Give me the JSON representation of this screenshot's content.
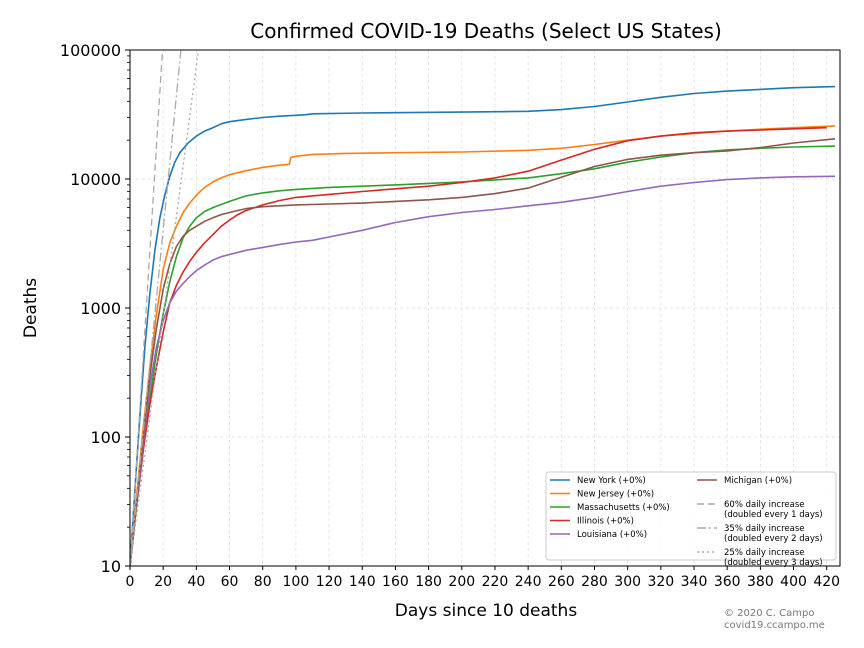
{
  "chart_data": {
    "type": "line",
    "title": "Confirmed COVID-19 Deaths (Select US States)",
    "xlabel": "Days since 10 deaths",
    "ylabel": "Deaths",
    "xlim": [
      0,
      428
    ],
    "ylim": [
      10,
      100000
    ],
    "yscale": "log",
    "grid": true,
    "legend_position": "bottom-right",
    "x_ticks": [
      0,
      20,
      40,
      60,
      80,
      100,
      120,
      140,
      160,
      180,
      200,
      220,
      240,
      260,
      280,
      300,
      320,
      340,
      360,
      380,
      400,
      420
    ],
    "y_ticks": [
      {
        "value": 10,
        "label": "10"
      },
      {
        "value": 100,
        "label": "100"
      },
      {
        "value": 1000,
        "label": "1000"
      },
      {
        "value": 10000,
        "label": "10000"
      },
      {
        "value": 100000,
        "label": "100000"
      }
    ],
    "series": [
      {
        "name": "New York (+0%)",
        "color": "#1f77b4",
        "style": "solid",
        "points": [
          [
            0,
            10
          ],
          [
            3,
            40
          ],
          [
            6,
            150
          ],
          [
            9,
            500
          ],
          [
            12,
            1300
          ],
          [
            15,
            2800
          ],
          [
            18,
            5000
          ],
          [
            21,
            7500
          ],
          [
            24,
            10500
          ],
          [
            27,
            13500
          ],
          [
            30,
            16000
          ],
          [
            35,
            19000
          ],
          [
            40,
            21500
          ],
          [
            45,
            23500
          ],
          [
            50,
            25000
          ],
          [
            55,
            26800
          ],
          [
            60,
            27800
          ],
          [
            70,
            29000
          ],
          [
            80,
            30000
          ],
          [
            90,
            30700
          ],
          [
            100,
            31200
          ],
          [
            106,
            31500
          ],
          [
            110,
            32000
          ],
          [
            140,
            32500
          ],
          [
            200,
            33000
          ],
          [
            240,
            33500
          ],
          [
            260,
            34500
          ],
          [
            280,
            36500
          ],
          [
            300,
            39500
          ],
          [
            320,
            43000
          ],
          [
            340,
            46000
          ],
          [
            360,
            48000
          ],
          [
            380,
            49500
          ],
          [
            400,
            51000
          ],
          [
            425,
            52000
          ]
        ]
      },
      {
        "name": "New Jersey (+0%)",
        "color": "#ff7f0e",
        "style": "solid",
        "points": [
          [
            0,
            10
          ],
          [
            4,
            35
          ],
          [
            8,
            120
          ],
          [
            12,
            350
          ],
          [
            16,
            900
          ],
          [
            20,
            2000
          ],
          [
            24,
            3200
          ],
          [
            28,
            4300
          ],
          [
            32,
            5500
          ],
          [
            36,
            6500
          ],
          [
            40,
            7500
          ],
          [
            45,
            8600
          ],
          [
            50,
            9500
          ],
          [
            55,
            10200
          ],
          [
            60,
            10800
          ],
          [
            70,
            11600
          ],
          [
            80,
            12300
          ],
          [
            90,
            12800
          ],
          [
            96,
            13000
          ],
          [
            97,
            14700
          ],
          [
            100,
            15000
          ],
          [
            110,
            15500
          ],
          [
            130,
            15800
          ],
          [
            160,
            16000
          ],
          [
            200,
            16200
          ],
          [
            240,
            16700
          ],
          [
            260,
            17300
          ],
          [
            280,
            18500
          ],
          [
            300,
            20000
          ],
          [
            320,
            21500
          ],
          [
            340,
            22500
          ],
          [
            360,
            23500
          ],
          [
            380,
            24300
          ],
          [
            400,
            25000
          ],
          [
            425,
            25800
          ]
        ]
      },
      {
        "name": "Massachusetts (+0%)",
        "color": "#2ca02c",
        "style": "solid",
        "points": [
          [
            0,
            10
          ],
          [
            4,
            30
          ],
          [
            8,
            80
          ],
          [
            12,
            200
          ],
          [
            16,
            450
          ],
          [
            20,
            900
          ],
          [
            24,
            1600
          ],
          [
            28,
            2500
          ],
          [
            32,
            3500
          ],
          [
            36,
            4300
          ],
          [
            40,
            5000
          ],
          [
            45,
            5600
          ],
          [
            50,
            6000
          ],
          [
            60,
            6700
          ],
          [
            70,
            7400
          ],
          [
            80,
            7800
          ],
          [
            90,
            8100
          ],
          [
            100,
            8300
          ],
          [
            120,
            8600
          ],
          [
            140,
            8800
          ],
          [
            160,
            9000
          ],
          [
            200,
            9500
          ],
          [
            240,
            10200
          ],
          [
            260,
            11000
          ],
          [
            280,
            12000
          ],
          [
            300,
            13500
          ],
          [
            320,
            14800
          ],
          [
            340,
            16000
          ],
          [
            360,
            16800
          ],
          [
            380,
            17300
          ],
          [
            400,
            17700
          ],
          [
            425,
            18000
          ]
        ]
      },
      {
        "name": "Illinois (+0%)",
        "color": "#d62728",
        "style": "solid",
        "points": [
          [
            0,
            10
          ],
          [
            4,
            30
          ],
          [
            8,
            80
          ],
          [
            12,
            180
          ],
          [
            16,
            350
          ],
          [
            20,
            650
          ],
          [
            24,
            1100
          ],
          [
            28,
            1500
          ],
          [
            32,
            1900
          ],
          [
            36,
            2300
          ],
          [
            40,
            2700
          ],
          [
            45,
            3200
          ],
          [
            50,
            3700
          ],
          [
            55,
            4300
          ],
          [
            60,
            4800
          ],
          [
            65,
            5300
          ],
          [
            70,
            5700
          ],
          [
            80,
            6300
          ],
          [
            90,
            6800
          ],
          [
            100,
            7200
          ],
          [
            120,
            7600
          ],
          [
            140,
            8000
          ],
          [
            160,
            8400
          ],
          [
            180,
            8800
          ],
          [
            200,
            9400
          ],
          [
            220,
            10200
          ],
          [
            240,
            11500
          ],
          [
            260,
            14000
          ],
          [
            280,
            17000
          ],
          [
            300,
            19800
          ],
          [
            320,
            21500
          ],
          [
            340,
            22800
          ],
          [
            360,
            23500
          ],
          [
            380,
            24000
          ],
          [
            400,
            24500
          ],
          [
            420,
            25000
          ]
        ]
      },
      {
        "name": "Louisiana (+0%)",
        "color": "#9467bd",
        "style": "solid",
        "points": [
          [
            0,
            10
          ],
          [
            4,
            30
          ],
          [
            8,
            90
          ],
          [
            12,
            250
          ],
          [
            16,
            500
          ],
          [
            20,
            800
          ],
          [
            24,
            1100
          ],
          [
            28,
            1350
          ],
          [
            32,
            1550
          ],
          [
            36,
            1750
          ],
          [
            40,
            1950
          ],
          [
            45,
            2150
          ],
          [
            50,
            2350
          ],
          [
            55,
            2500
          ],
          [
            60,
            2600
          ],
          [
            70,
            2800
          ],
          [
            80,
            2950
          ],
          [
            90,
            3100
          ],
          [
            100,
            3250
          ],
          [
            110,
            3350
          ],
          [
            120,
            3550
          ],
          [
            140,
            4000
          ],
          [
            160,
            4600
          ],
          [
            180,
            5100
          ],
          [
            200,
            5500
          ],
          [
            220,
            5800
          ],
          [
            240,
            6200
          ],
          [
            260,
            6600
          ],
          [
            280,
            7200
          ],
          [
            300,
            8000
          ],
          [
            320,
            8800
          ],
          [
            340,
            9400
          ],
          [
            360,
            9900
          ],
          [
            380,
            10200
          ],
          [
            400,
            10400
          ],
          [
            425,
            10500
          ]
        ]
      },
      {
        "name": "Michigan (+0%)",
        "color": "#8c564b",
        "style": "solid",
        "points": [
          [
            0,
            10
          ],
          [
            4,
            30
          ],
          [
            8,
            100
          ],
          [
            12,
            300
          ],
          [
            16,
            700
          ],
          [
            20,
            1400
          ],
          [
            24,
            2200
          ],
          [
            28,
            3000
          ],
          [
            32,
            3600
          ],
          [
            36,
            4000
          ],
          [
            40,
            4300
          ],
          [
            45,
            4700
          ],
          [
            50,
            5000
          ],
          [
            55,
            5300
          ],
          [
            60,
            5500
          ],
          [
            65,
            5700
          ],
          [
            70,
            5900
          ],
          [
            80,
            6100
          ],
          [
            100,
            6300
          ],
          [
            120,
            6400
          ],
          [
            140,
            6500
          ],
          [
            160,
            6700
          ],
          [
            180,
            6900
          ],
          [
            200,
            7200
          ],
          [
            220,
            7700
          ],
          [
            240,
            8500
          ],
          [
            260,
            10300
          ],
          [
            280,
            12500
          ],
          [
            300,
            14200
          ],
          [
            320,
            15300
          ],
          [
            340,
            16000
          ],
          [
            360,
            16500
          ],
          [
            380,
            17500
          ],
          [
            400,
            19000
          ],
          [
            425,
            20500
          ]
        ]
      },
      {
        "name": "60% daily increase\n(doubled every 1 days)",
        "color": "#aaaaaa",
        "style": "dashed",
        "points": [
          [
            0,
            10
          ],
          [
            19.6,
            100000
          ]
        ]
      },
      {
        "name": "35% daily increase\n(doubled every 2 days)",
        "color": "#aaaaaa",
        "style": "dashdot",
        "points": [
          [
            0,
            10
          ],
          [
            30.7,
            100000
          ]
        ]
      },
      {
        "name": "25% daily increase\n(doubled every 3 days)",
        "color": "#aaaaaa",
        "style": "dotted",
        "points": [
          [
            0,
            10
          ],
          [
            41.3,
            100000
          ]
        ]
      }
    ],
    "credit_lines": [
      "© 2020 C. Campo",
      "covid19.ccampo.me"
    ]
  }
}
